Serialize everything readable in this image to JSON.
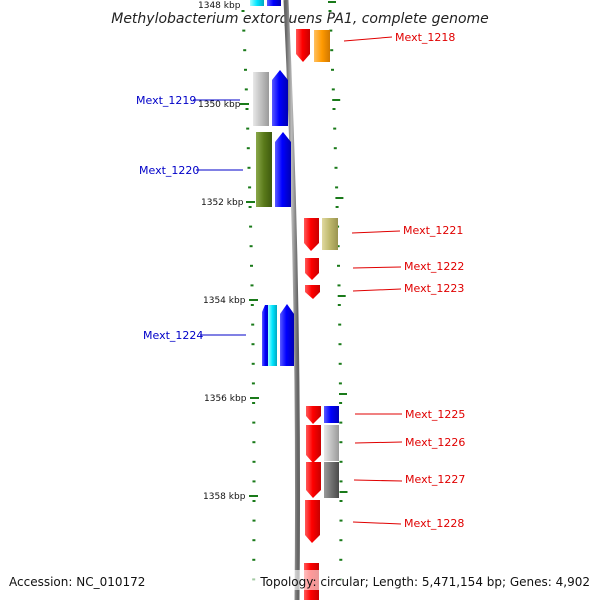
{
  "title": "Methylobacterium extorquens PA1, complete genome",
  "footer": {
    "accession": "Accession: NC_010172",
    "summary": "Topology: circular; Length: 5,471,154 bp; Genes: 4,902"
  },
  "scale_labels": [
    "1348 kbp",
    "1350 kbp",
    "1352 kbp",
    "1354 kbp",
    "1356 kbp",
    "1358 kbp"
  ],
  "genes_left": [
    {
      "label": "Mext_1219",
      "color": "#0000c8"
    },
    {
      "label": "Mext_1220",
      "color": "#0000c8"
    },
    {
      "label": "Mext_1224",
      "color": "#0000c8"
    }
  ],
  "genes_right": [
    {
      "label": "Mext_1218",
      "color": "#e00000"
    },
    {
      "label": "Mext_1221",
      "color": "#e00000"
    },
    {
      "label": "Mext_1222",
      "color": "#e00000"
    },
    {
      "label": "Mext_1223",
      "color": "#e00000"
    },
    {
      "label": "Mext_1225",
      "color": "#e00000"
    },
    {
      "label": "Mext_1226",
      "color": "#e00000"
    },
    {
      "label": "Mext_1227",
      "color": "#e00000"
    },
    {
      "label": "Mext_1228",
      "color": "#e00000"
    }
  ],
  "colors": {
    "backbone": "#999999",
    "tick": "#1a7a1a",
    "forward_cds": "#ff0000",
    "reverse_cds": "#0000ff",
    "orange": "#ff9900",
    "olive": "#5a7a1a",
    "khaki": "#bdb76b",
    "cyan": "#00e5ff",
    "light_gray": "#c0c0c0",
    "dark_gray": "#707070"
  }
}
